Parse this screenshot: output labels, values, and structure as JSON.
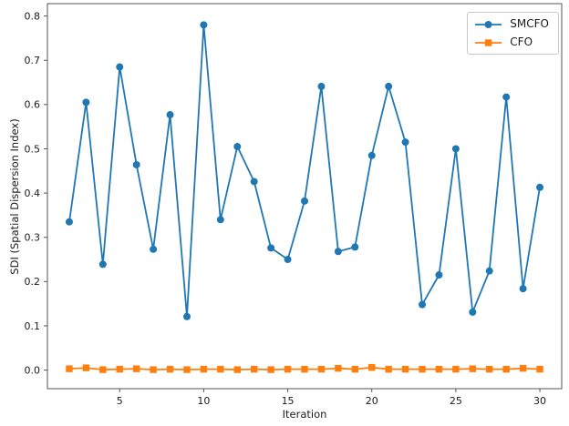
{
  "figure": {
    "background": "#ffffff",
    "spine_color": "#545454",
    "text_color": "#1a1a1a"
  },
  "chart_data": {
    "type": "line",
    "title": "",
    "xlabel": "Iteration",
    "ylabel": "SDI (Spatial Dispersion Index)",
    "xlim": [
      0.7,
      31.3
    ],
    "ylim": [
      -0.042,
      0.828
    ],
    "x_ticks": [
      5,
      10,
      15,
      20,
      25,
      30
    ],
    "x_tick_labels": [
      "5",
      "10",
      "15",
      "20",
      "25",
      "30"
    ],
    "y_ticks": [
      0.0,
      0.1,
      0.2,
      0.3,
      0.4,
      0.5,
      0.6,
      0.7,
      0.8
    ],
    "y_tick_labels": [
      "0.0",
      "0.1",
      "0.2",
      "0.3",
      "0.4",
      "0.5",
      "0.6",
      "0.7",
      "0.8"
    ],
    "grid": false,
    "legend_position": "upper right",
    "x": [
      2,
      3,
      4,
      5,
      6,
      7,
      8,
      9,
      10,
      11,
      12,
      13,
      14,
      15,
      16,
      17,
      18,
      19,
      20,
      21,
      22,
      23,
      24,
      25,
      26,
      27,
      28,
      29,
      30
    ],
    "series": [
      {
        "name": "SMCFO",
        "color": "#1f77b4",
        "marker": "circle",
        "values": [
          0.335,
          0.605,
          0.239,
          0.685,
          0.464,
          0.273,
          0.577,
          0.121,
          0.78,
          0.34,
          0.505,
          0.426,
          0.276,
          0.25,
          0.382,
          0.641,
          0.268,
          0.278,
          0.485,
          0.641,
          0.515,
          0.148,
          0.215,
          0.5,
          0.131,
          0.224,
          0.617,
          0.184,
          0.413
        ]
      },
      {
        "name": "CFO",
        "color": "#ff7f0e",
        "marker": "square",
        "values": [
          0.003,
          0.005,
          0.001,
          0.002,
          0.003,
          0.001,
          0.002,
          0.001,
          0.002,
          0.002,
          0.001,
          0.002,
          0.001,
          0.002,
          0.002,
          0.002,
          0.004,
          0.002,
          0.006,
          0.002,
          0.002,
          0.002,
          0.002,
          0.002,
          0.003,
          0.002,
          0.002,
          0.004,
          0.002
        ]
      }
    ]
  }
}
